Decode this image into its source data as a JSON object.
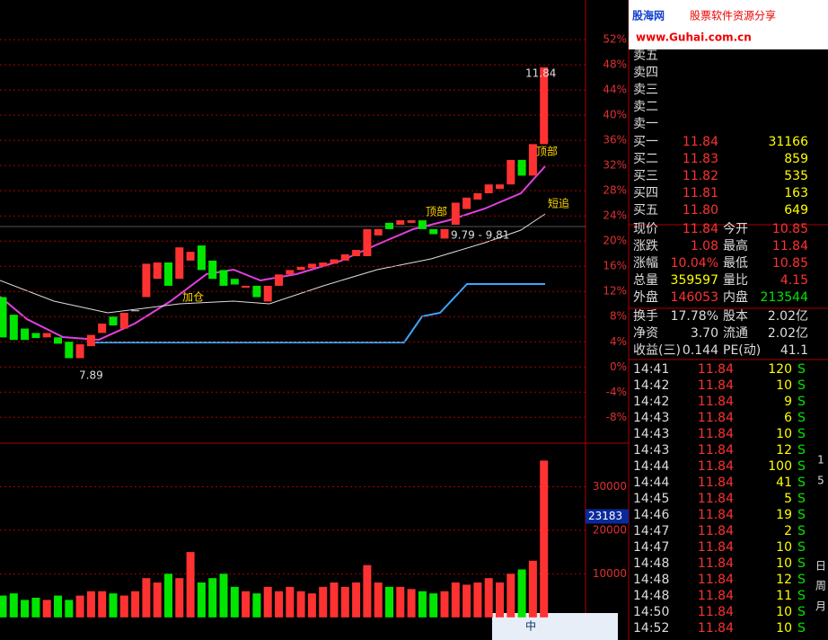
{
  "header": {
    "logo": "股海网",
    "slogan": "股票软件资源分享",
    "url": "www.Guhai.com.cn"
  },
  "chart_data": [
    {
      "type": "candlestick",
      "open": [
        11.1,
        8.3,
        6.1,
        5.4,
        4.7,
        4.7,
        4.0,
        1.4,
        3.3,
        5.4,
        8.0,
        6.1,
        9.0,
        11.1,
        14.0,
        16.6,
        14.0,
        16.9,
        19.3,
        16.9,
        15.4,
        14.0,
        12.6,
        12.9,
        10.4,
        12.9,
        14.7,
        15.4,
        15.7,
        16.0,
        16.4,
        16.9,
        17.6,
        17.6,
        20.9,
        22.9,
        22.6,
        22.9,
        23.3,
        21.9,
        20.4,
        22.6,
        25.1,
        26.6,
        27.6,
        28.3,
        29.0,
        32.9,
        30.4,
        35.4
      ],
      "close": [
        4.7,
        4.3,
        4.3,
        4.6,
        5.4,
        3.7,
        1.4,
        3.6,
        5.1,
        6.9,
        6.6,
        8.6,
        9.0,
        16.4,
        16.6,
        12.9,
        19.0,
        18.3,
        15.4,
        14.0,
        12.9,
        13.1,
        12.9,
        11.1,
        12.9,
        14.7,
        15.4,
        15.9,
        16.4,
        16.6,
        17.1,
        17.9,
        18.6,
        21.9,
        21.9,
        21.9,
        23.3,
        23.3,
        21.9,
        21.1,
        21.9,
        26.1,
        26.9,
        27.6,
        29.0,
        29.0,
        32.9,
        30.4,
        35.4,
        47.6
      ],
      "color_up": "#ff3232",
      "color_down": "#00e600",
      "ylim": [
        -12.1,
        58.3
      ],
      "yticks": [
        {
          "value": 52,
          "label": "52%"
        },
        {
          "value": 48,
          "label": "48%"
        },
        {
          "value": 44,
          "label": "44%"
        },
        {
          "value": 40,
          "label": "40%"
        },
        {
          "value": 36,
          "label": "36%"
        },
        {
          "value": 32,
          "label": "32%"
        },
        {
          "value": 28,
          "label": "28%"
        },
        {
          "value": 24,
          "label": "24%"
        },
        {
          "value": 20,
          "label": "20%"
        },
        {
          "value": 16,
          "label": "16%"
        },
        {
          "value": 12,
          "label": "12%"
        },
        {
          "value": 8,
          "label": "8%"
        },
        {
          "value": 4,
          "label": "4%"
        },
        {
          "value": 0,
          "label": "0%"
        },
        {
          "value": -4,
          "label": "-4%"
        },
        {
          "value": -8,
          "label": "-8%"
        }
      ],
      "grid": true,
      "annotations": [
        "11.84",
        "7.89",
        "顶部",
        "顶部",
        "短追",
        "加仓",
        "9.79 - 9.81"
      ]
    },
    {
      "type": "bar",
      "values": [
        5000,
        5500,
        4000,
        4500,
        4000,
        5000,
        4000,
        5000,
        6000,
        6000,
        5500,
        5000,
        6000,
        9000,
        8000,
        10000,
        9000,
        15000,
        8000,
        9000,
        10000,
        7000,
        6000,
        5500,
        7000,
        6000,
        7000,
        6000,
        5500,
        7000,
        8000,
        7000,
        8000,
        12000,
        8000,
        7000,
        7000,
        6500,
        6000,
        5500,
        6000,
        8000,
        7500,
        8000,
        9000,
        8000,
        10000,
        11000,
        13000,
        36000
      ],
      "ylim": [
        -5200,
        40000
      ],
      "yticks": [
        10000,
        20000,
        30000
      ],
      "marker": 23183
    }
  ],
  "orderbook": {
    "asks": [
      "卖五",
      "卖四",
      "卖三",
      "卖二",
      "卖一"
    ],
    "bids": [
      [
        "买一",
        "11.84",
        "31166"
      ],
      [
        "买二",
        "11.83",
        "859"
      ],
      [
        "买三",
        "11.82",
        "535"
      ],
      [
        "买四",
        "11.81",
        "163"
      ],
      [
        "买五",
        "11.80",
        "649"
      ]
    ]
  },
  "stats": [
    [
      "现价",
      "11.84",
      "今开",
      "10.85"
    ],
    [
      "涨跌",
      "1.08",
      "最高",
      "11.84"
    ],
    [
      "涨幅",
      "10.04%",
      "最低",
      "10.85"
    ],
    [
      "总量",
      "359597",
      "量比",
      "4.15"
    ],
    [
      "外盘",
      "146053",
      "内盘",
      "213544"
    ],
    [
      "换手",
      "17.78%",
      "股本",
      "2.02亿"
    ],
    [
      "净资",
      "3.70",
      "流通",
      "2.02亿"
    ],
    [
      "收益(三)",
      "0.144",
      "PE(动)",
      "41.1"
    ]
  ],
  "trades": [
    [
      "14:41",
      "11.84",
      "120",
      "S"
    ],
    [
      "14:42",
      "11.84",
      "10",
      "S"
    ],
    [
      "14:42",
      "11.84",
      "9",
      "S"
    ],
    [
      "14:43",
      "11.84",
      "6",
      "S"
    ],
    [
      "14:43",
      "11.84",
      "10",
      "S"
    ],
    [
      "14:43",
      "11.84",
      "12",
      "S"
    ],
    [
      "14:44",
      "11.84",
      "100",
      "S"
    ],
    [
      "14:44",
      "11.84",
      "41",
      "S"
    ],
    [
      "14:45",
      "11.84",
      "5",
      "S"
    ],
    [
      "14:46",
      "11.84",
      "19",
      "S"
    ],
    [
      "14:47",
      "11.84",
      "2",
      "S"
    ],
    [
      "14:47",
      "11.84",
      "10",
      "S"
    ],
    [
      "14:48",
      "11.84",
      "10",
      "S"
    ],
    [
      "14:48",
      "11.84",
      "12",
      "S"
    ],
    [
      "14:48",
      "11.84",
      "11",
      "S"
    ],
    [
      "14:50",
      "11.84",
      "10",
      "S"
    ],
    [
      "14:52",
      "11.84",
      "10",
      "S"
    ]
  ],
  "sidebar": [
    "1",
    "5",
    "日",
    "周",
    "月"
  ]
}
